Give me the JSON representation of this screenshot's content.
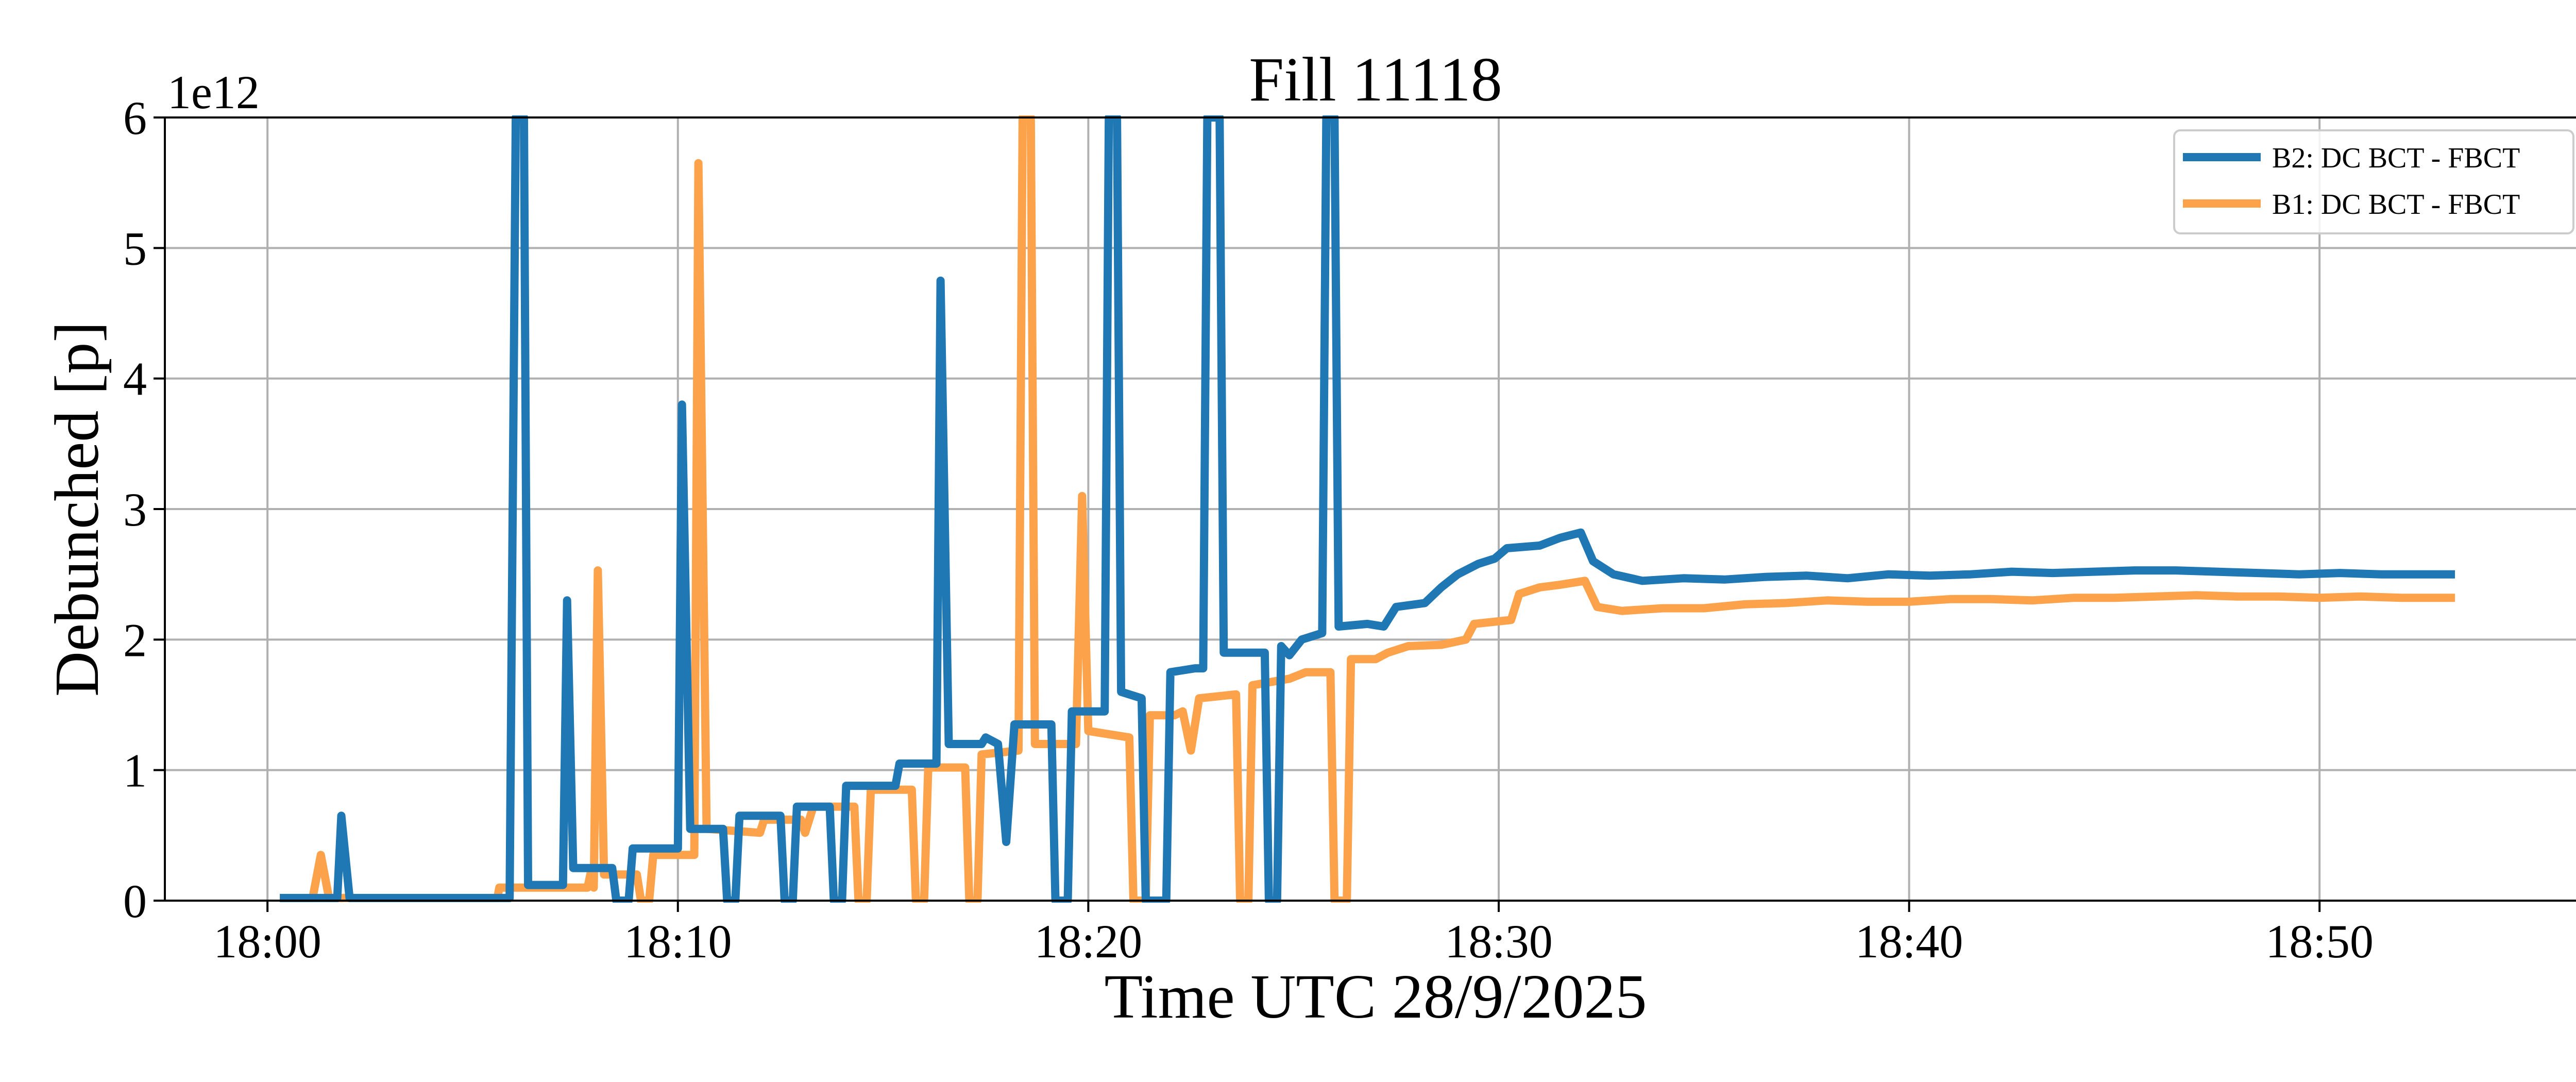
{
  "chart_data": {
    "type": "line",
    "title": "Fill 11118",
    "xlabel": "Time UTC 28/9/2025",
    "ylabel": "Debunched [p]",
    "y_offset_text": "1e12",
    "x_unit": "minutes after 18:00 UTC",
    "xlim": [
      -2.5,
      56.5
    ],
    "ylim": [
      0,
      6
    ],
    "x_ticks": [
      0,
      10,
      20,
      30,
      40,
      50
    ],
    "x_tick_labels": [
      "18:00",
      "18:10",
      "18:20",
      "18:30",
      "18:40",
      "18:50"
    ],
    "y_ticks": [
      0,
      1,
      2,
      3,
      4,
      5,
      6
    ],
    "y_tick_labels": [
      "0",
      "1",
      "2",
      "3",
      "4",
      "5",
      "6"
    ],
    "grid": true,
    "legend_position": "top-right",
    "series": [
      {
        "name": "B2: DC BCT - FBCT",
        "color": "#1f77b4",
        "points": [
          [
            0.3,
            0.02
          ],
          [
            1.7,
            0.02
          ],
          [
            1.8,
            0.65
          ],
          [
            2.0,
            0.02
          ],
          [
            4.8,
            0.02
          ],
          [
            5.9,
            0.02
          ],
          [
            6.05,
            6.0
          ],
          [
            6.25,
            6.0
          ],
          [
            6.35,
            0.12
          ],
          [
            7.2,
            0.12
          ],
          [
            7.3,
            2.3
          ],
          [
            7.45,
            0.25
          ],
          [
            8.4,
            0.25
          ],
          [
            8.5,
            0.0
          ],
          [
            8.8,
            0.0
          ],
          [
            8.9,
            0.4
          ],
          [
            10.0,
            0.4
          ],
          [
            10.1,
            3.8
          ],
          [
            10.3,
            0.55
          ],
          [
            11.1,
            0.55
          ],
          [
            11.2,
            0.0
          ],
          [
            11.4,
            0.0
          ],
          [
            11.5,
            0.65
          ],
          [
            12.5,
            0.65
          ],
          [
            12.6,
            0.0
          ],
          [
            12.8,
            0.0
          ],
          [
            12.9,
            0.72
          ],
          [
            13.7,
            0.72
          ],
          [
            13.8,
            0.0
          ],
          [
            14.0,
            0.0
          ],
          [
            14.1,
            0.88
          ],
          [
            15.3,
            0.88
          ],
          [
            15.4,
            1.05
          ],
          [
            16.3,
            1.05
          ],
          [
            16.4,
            4.75
          ],
          [
            16.6,
            1.2
          ],
          [
            17.4,
            1.2
          ],
          [
            17.5,
            1.25
          ],
          [
            17.8,
            1.2
          ],
          [
            18.0,
            0.45
          ],
          [
            18.2,
            1.35
          ],
          [
            19.1,
            1.35
          ],
          [
            19.2,
            0.0
          ],
          [
            19.5,
            0.0
          ],
          [
            19.6,
            1.45
          ],
          [
            20.4,
            1.45
          ],
          [
            20.5,
            6.0
          ],
          [
            20.7,
            6.0
          ],
          [
            20.8,
            1.6
          ],
          [
            21.3,
            1.55
          ],
          [
            21.4,
            0.0
          ],
          [
            21.9,
            0.0
          ],
          [
            22.0,
            1.75
          ],
          [
            22.6,
            1.78
          ],
          [
            22.8,
            1.78
          ],
          [
            22.9,
            6.0
          ],
          [
            23.2,
            6.0
          ],
          [
            23.3,
            1.9
          ],
          [
            24.3,
            1.9
          ],
          [
            24.4,
            0.0
          ],
          [
            24.6,
            0.0
          ],
          [
            24.7,
            1.95
          ],
          [
            24.9,
            1.88
          ],
          [
            25.2,
            2.0
          ],
          [
            25.7,
            2.05
          ],
          [
            25.8,
            6.0
          ],
          [
            26.0,
            6.0
          ],
          [
            26.1,
            2.1
          ],
          [
            26.8,
            2.12
          ],
          [
            27.2,
            2.1
          ],
          [
            27.5,
            2.25
          ],
          [
            28.2,
            2.28
          ],
          [
            28.6,
            2.4
          ],
          [
            29.0,
            2.5
          ],
          [
            29.5,
            2.58
          ],
          [
            29.9,
            2.62
          ],
          [
            30.2,
            2.7
          ],
          [
            31.0,
            2.72
          ],
          [
            31.5,
            2.78
          ],
          [
            32.0,
            2.82
          ],
          [
            32.3,
            2.6
          ],
          [
            32.8,
            2.5
          ],
          [
            33.5,
            2.45
          ],
          [
            34.5,
            2.47
          ],
          [
            35.5,
            2.46
          ],
          [
            36.5,
            2.48
          ],
          [
            37.5,
            2.49
          ],
          [
            38.5,
            2.47
          ],
          [
            39.5,
            2.5
          ],
          [
            40.5,
            2.49
          ],
          [
            41.5,
            2.5
          ],
          [
            42.5,
            2.52
          ],
          [
            43.5,
            2.51
          ],
          [
            44.5,
            2.52
          ],
          [
            45.5,
            2.53
          ],
          [
            46.5,
            2.53
          ],
          [
            47.5,
            2.52
          ],
          [
            48.5,
            2.51
          ],
          [
            49.5,
            2.5
          ],
          [
            50.5,
            2.51
          ],
          [
            51.5,
            2.5
          ],
          [
            52.5,
            2.5
          ],
          [
            53.3,
            2.5
          ]
        ]
      },
      {
        "name": "B1: DC BCT - FBCT",
        "color": "#fca24b",
        "points": [
          [
            0.3,
            0.02
          ],
          [
            1.1,
            0.02
          ],
          [
            1.3,
            0.35
          ],
          [
            1.5,
            0.02
          ],
          [
            4.8,
            0.02
          ],
          [
            5.6,
            0.02
          ],
          [
            5.65,
            0.1
          ],
          [
            7.8,
            0.1
          ],
          [
            7.9,
            0.25
          ],
          [
            7.95,
            0.1
          ],
          [
            8.05,
            2.53
          ],
          [
            8.2,
            0.2
          ],
          [
            9.0,
            0.2
          ],
          [
            9.1,
            0.0
          ],
          [
            9.3,
            0.0
          ],
          [
            9.4,
            0.35
          ],
          [
            10.4,
            0.35
          ],
          [
            10.5,
            5.65
          ],
          [
            10.7,
            0.55
          ],
          [
            12.0,
            0.52
          ],
          [
            12.1,
            0.62
          ],
          [
            13.0,
            0.62
          ],
          [
            13.1,
            0.52
          ],
          [
            13.3,
            0.72
          ],
          [
            14.3,
            0.72
          ],
          [
            14.4,
            0.0
          ],
          [
            14.6,
            0.0
          ],
          [
            14.7,
            0.85
          ],
          [
            15.7,
            0.85
          ],
          [
            15.8,
            0.0
          ],
          [
            16.0,
            0.0
          ],
          [
            16.1,
            1.02
          ],
          [
            17.0,
            1.02
          ],
          [
            17.1,
            0.0
          ],
          [
            17.3,
            0.0
          ],
          [
            17.4,
            1.12
          ],
          [
            18.3,
            1.15
          ],
          [
            18.4,
            6.0
          ],
          [
            18.6,
            6.0
          ],
          [
            18.7,
            1.2
          ],
          [
            19.7,
            1.2
          ],
          [
            19.85,
            3.1
          ],
          [
            20.0,
            1.3
          ],
          [
            21.0,
            1.25
          ],
          [
            21.1,
            0.0
          ],
          [
            21.4,
            0.0
          ],
          [
            21.5,
            1.42
          ],
          [
            22.1,
            1.42
          ],
          [
            22.3,
            1.45
          ],
          [
            22.5,
            1.15
          ],
          [
            22.7,
            1.55
          ],
          [
            23.6,
            1.58
          ],
          [
            23.7,
            0.0
          ],
          [
            23.9,
            0.0
          ],
          [
            24.0,
            1.65
          ],
          [
            24.9,
            1.7
          ],
          [
            25.3,
            1.75
          ],
          [
            25.9,
            1.75
          ],
          [
            26.0,
            0.0
          ],
          [
            26.3,
            0.0
          ],
          [
            26.4,
            1.85
          ],
          [
            27.0,
            1.85
          ],
          [
            27.3,
            1.9
          ],
          [
            27.8,
            1.95
          ],
          [
            28.6,
            1.96
          ],
          [
            29.2,
            2.0
          ],
          [
            29.4,
            2.12
          ],
          [
            30.3,
            2.15
          ],
          [
            30.5,
            2.35
          ],
          [
            31.0,
            2.4
          ],
          [
            31.5,
            2.42
          ],
          [
            32.1,
            2.45
          ],
          [
            32.4,
            2.25
          ],
          [
            33.0,
            2.22
          ],
          [
            34.0,
            2.24
          ],
          [
            35.0,
            2.24
          ],
          [
            36.0,
            2.27
          ],
          [
            37.0,
            2.28
          ],
          [
            38.0,
            2.3
          ],
          [
            39.0,
            2.29
          ],
          [
            40.0,
            2.29
          ],
          [
            41.0,
            2.31
          ],
          [
            42.0,
            2.31
          ],
          [
            43.0,
            2.3
          ],
          [
            44.0,
            2.32
          ],
          [
            45.0,
            2.32
          ],
          [
            46.0,
            2.33
          ],
          [
            47.0,
            2.34
          ],
          [
            48.0,
            2.33
          ],
          [
            49.0,
            2.33
          ],
          [
            50.0,
            2.32
          ],
          [
            51.0,
            2.33
          ],
          [
            52.0,
            2.32
          ],
          [
            53.3,
            2.32
          ]
        ]
      }
    ]
  }
}
